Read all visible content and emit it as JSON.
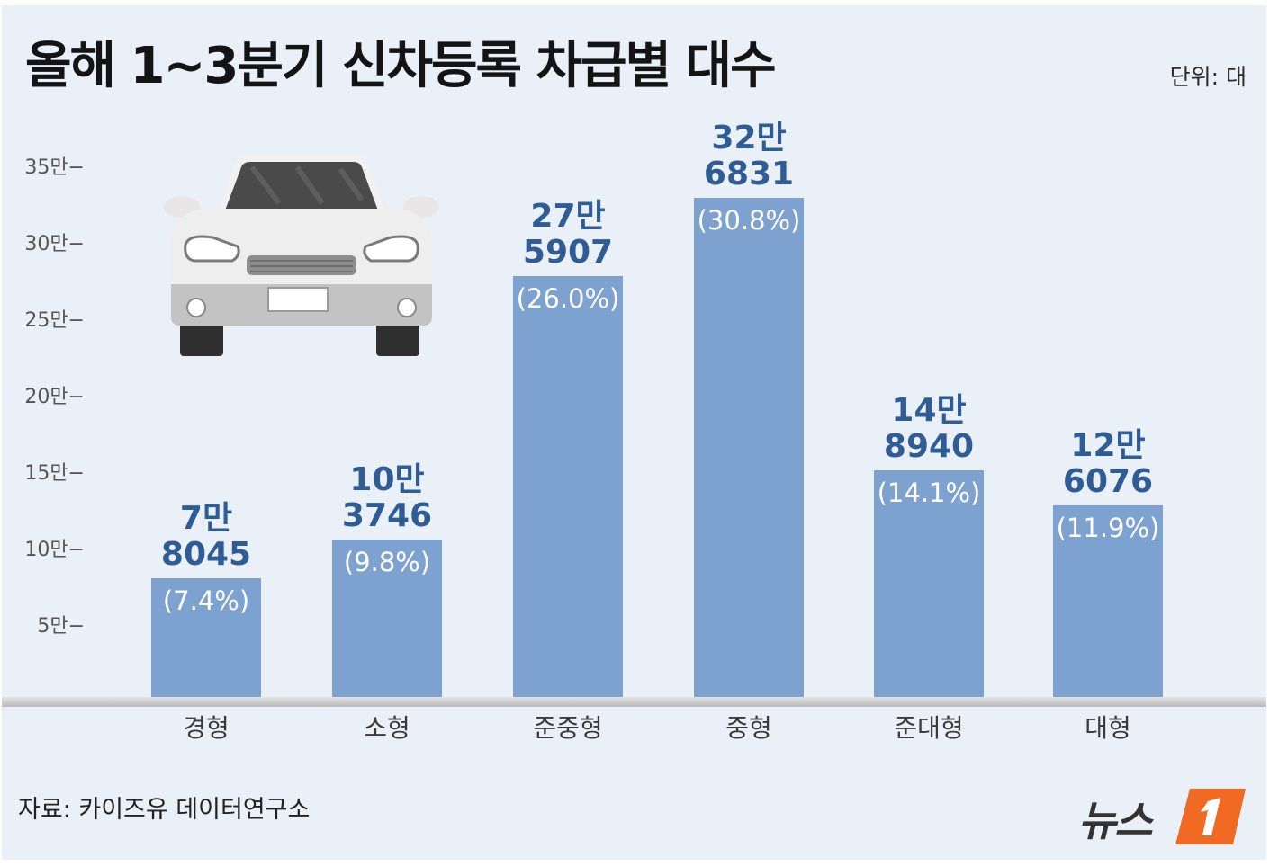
{
  "title": "올해 1~3분기 신차등록 차급별 대수",
  "unit": "단위: 대",
  "source": "자료: 카이즈유 데이터연구소",
  "brand": {
    "text": "뉴스",
    "mark": "1"
  },
  "chart_data": {
    "type": "bar",
    "title": "올해 1~3분기 신차등록 차급별 대수",
    "unit": "대",
    "categories": [
      "경형",
      "소형",
      "준중형",
      "중형",
      "준대형",
      "대형"
    ],
    "values": [
      78045,
      103746,
      275907,
      326831,
      148940,
      126076
    ],
    "value_labels": [
      {
        "line1": "7만",
        "line2": "8045"
      },
      {
        "line1": "10만",
        "line2": "3746"
      },
      {
        "line1": "27만",
        "line2": "5907"
      },
      {
        "line1": "32만",
        "line2": "6831"
      },
      {
        "line1": "14만",
        "line2": "8940"
      },
      {
        "line1": "12만",
        "line2": "6076"
      }
    ],
    "percent_labels": [
      "(7.4%)",
      "(9.8%)",
      "(26.0%)",
      "(30.8%)",
      "(14.1%)",
      "(11.9%)"
    ],
    "ylim": [
      0,
      350000
    ],
    "yticks": [
      {
        "value": 50000,
        "label": "5만−"
      },
      {
        "value": 100000,
        "label": "10만−"
      },
      {
        "value": 150000,
        "label": "15만−"
      },
      {
        "value": 200000,
        "label": "20만−"
      },
      {
        "value": 250000,
        "label": "25만−"
      },
      {
        "value": 300000,
        "label": "30만−"
      },
      {
        "value": 350000,
        "label": "35만−"
      }
    ],
    "bar_color": "#7ea2cf",
    "label_color": "#2f5c94",
    "grid": false,
    "legend": "none"
  }
}
